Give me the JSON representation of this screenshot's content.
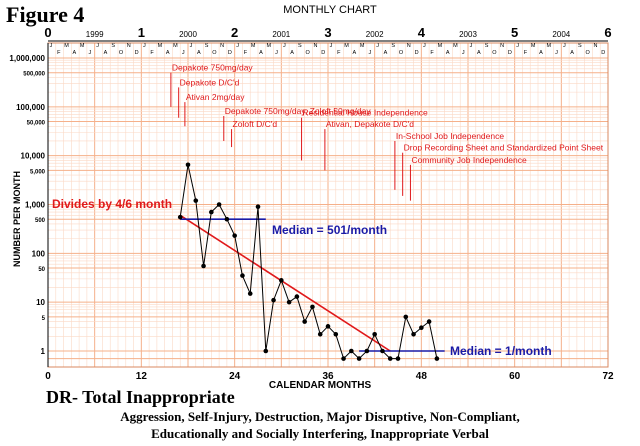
{
  "figure_label": "Figure 4",
  "chart_data": {
    "type": "line",
    "title": "MONTHLY CHART",
    "ylabel": "NUMBER PER MONTH",
    "xlabel": "CALENDAR MONTHS",
    "y_scale": "log",
    "ylim": [
      0.7,
      1000000
    ],
    "y_ticks": [
      {
        "v": 1000000,
        "label": "1,000,000"
      },
      {
        "v": 500000,
        "label": "500,000"
      },
      {
        "v": 100000,
        "label": "100,000"
      },
      {
        "v": 50000,
        "label": "50,000"
      },
      {
        "v": 10000,
        "label": "10,000"
      },
      {
        "v": 5000,
        "label": "5,000"
      },
      {
        "v": 1000,
        "label": "1,000"
      },
      {
        "v": 500,
        "label": "500"
      },
      {
        "v": 100,
        "label": "100"
      },
      {
        "v": 50,
        "label": "50"
      },
      {
        "v": 10,
        "label": "10"
      },
      {
        "v": 5,
        "label": "5"
      },
      {
        "v": 1,
        "label": "1"
      }
    ],
    "xlim": [
      0,
      72
    ],
    "x_ticks": [
      0,
      12,
      24,
      36,
      48,
      60,
      72
    ],
    "top_axis_ticks": [
      "0",
      "1",
      "2",
      "3",
      "4",
      "5",
      "6"
    ],
    "years": [
      "1999",
      "2000",
      "2001",
      "2002",
      "2003",
      "2004"
    ],
    "month_letters": [
      "J",
      "F",
      "M",
      "A",
      "M",
      "J",
      "J",
      "A",
      "S",
      "O",
      "N",
      "D"
    ],
    "grid": true,
    "series": [
      {
        "values": [
          {
            "x": 17,
            "y": 550
          },
          {
            "x": 18,
            "y": 6500
          },
          {
            "x": 19,
            "y": 1200
          },
          {
            "x": 20,
            "y": 55
          },
          {
            "x": 21,
            "y": 700
          },
          {
            "x": 22,
            "y": 1000
          },
          {
            "x": 23,
            "y": 500
          },
          {
            "x": 24,
            "y": 230
          },
          {
            "x": 25,
            "y": 35
          },
          {
            "x": 26,
            "y": 15
          },
          {
            "x": 27,
            "y": 900
          },
          {
            "x": 28,
            "y": 1
          },
          {
            "x": 29,
            "y": 11
          },
          {
            "x": 30,
            "y": 28
          },
          {
            "x": 31,
            "y": 10
          },
          {
            "x": 32,
            "y": 13
          },
          {
            "x": 33,
            "y": 4
          },
          {
            "x": 34,
            "y": 8
          },
          {
            "x": 35,
            "y": 2.2
          },
          {
            "x": 36,
            "y": 3.2
          },
          {
            "x": 37,
            "y": 2.2
          },
          {
            "x": 38,
            "y": 0.7
          },
          {
            "x": 39,
            "y": 1
          },
          {
            "x": 40,
            "y": 0.7
          },
          {
            "x": 41,
            "y": 1
          },
          {
            "x": 42,
            "y": 2.2
          },
          {
            "x": 43,
            "y": 1
          },
          {
            "x": 44,
            "y": 0.7
          },
          {
            "x": 45,
            "y": 0.7
          },
          {
            "x": 46,
            "y": 5
          },
          {
            "x": 47,
            "y": 2.2
          },
          {
            "x": 48,
            "y": 3
          },
          {
            "x": 49,
            "y": 4
          },
          {
            "x": 50,
            "y": 0.7
          }
        ]
      }
    ],
    "trend_line": {
      "x": [
        17,
        44
      ],
      "y": [
        600,
        1
      ],
      "label": "Divides by 4/6 month"
    },
    "medians": [
      {
        "x": [
          17,
          28
        ],
        "y": 501,
        "label": "Median = 501/month"
      },
      {
        "x": [
          40,
          51
        ],
        "y": 1,
        "label": "Median = 1/month"
      }
    ],
    "phase_changes": [
      {
        "x": 15.8,
        "y_top": 500000,
        "y_bottom": 100000,
        "label": "Depakote 750mg/day"
      },
      {
        "x": 16.8,
        "y_top": 250000,
        "y_bottom": 60000,
        "label": "Depakote D/C'd"
      },
      {
        "x": 17.6,
        "y_top": 125000,
        "y_bottom": 40000,
        "label": "Ativan 2mg/day"
      },
      {
        "x": 22.6,
        "y_top": 65000,
        "y_bottom": 20000,
        "label": "Depakote 750mg/day, Zoloft 50mg/day"
      },
      {
        "x": 23.6,
        "y_top": 35000,
        "y_bottom": 15000,
        "label": "Zoloft D/C'd"
      },
      {
        "x": 32.6,
        "y_top": 60000,
        "y_bottom": 8000,
        "label": "Residential House Independence"
      },
      {
        "x": 35.6,
        "y_top": 35000,
        "y_bottom": 5000,
        "label": "Ativan, Depakote D/C'd"
      },
      {
        "x": 44.6,
        "y_top": 20000,
        "y_bottom": 2000,
        "label": "In-School Job Independence"
      },
      {
        "x": 45.6,
        "y_top": 11500,
        "y_bottom": 1500,
        "label": "Drop Recording Sheet and Standardized Point Sheet"
      },
      {
        "x": 46.6,
        "y_top": 6500,
        "y_bottom": 1200,
        "label": "Community Job Independence"
      }
    ]
  },
  "bottom_title": "DR- Total Inappropriate",
  "caption_line1": "Aggression, Self-Injury, Destruction, Major Disruptive, Non-Compliant,",
  "caption_line2": "Educationally and Socially Interfering, Inappropriate Verbal",
  "colors": {
    "grid": "#f5b08a",
    "grid_minor": "#fbd9c6",
    "data": "#000000",
    "trend": "#e0191b",
    "median": "#1a1aa6",
    "annotation": "#e0191b"
  }
}
